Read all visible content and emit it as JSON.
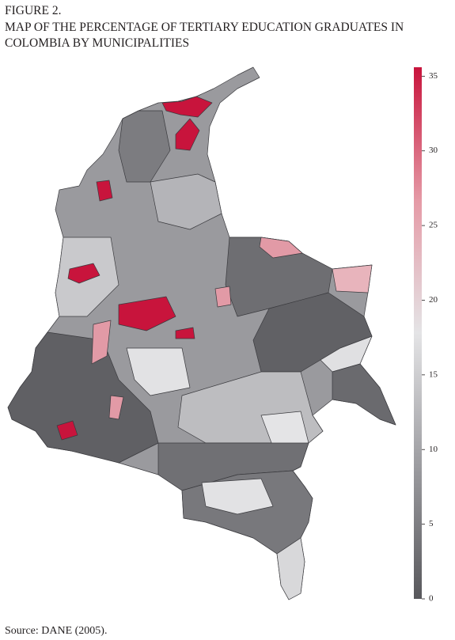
{
  "figure_label": "FIGURE 2.",
  "title_lines": [
    "MAP OF THE PERCENTAGE OF TERTIARY EDUCATION GRADUATES IN",
    "COLOMBIA BY MUNICIPALITIES"
  ],
  "source": "Source: DANE (2005).",
  "colorbar": {
    "lim": [
      0,
      35.6
    ],
    "ticks": [
      0,
      5,
      10,
      15,
      20,
      25,
      30,
      35
    ],
    "colors": [
      "#58585c",
      "#9c9ca0",
      "#e4e4e6",
      "#e59aa6",
      "#c8143c"
    ]
  }
}
